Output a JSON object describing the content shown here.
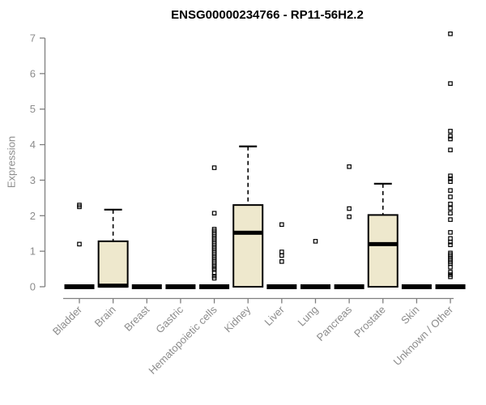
{
  "header": {
    "title": "ENSG00000234766 - RP11-56H2.2"
  },
  "chart_data": {
    "type": "boxplot",
    "title": "ENSG00000234766 - RP11-56H2.2",
    "xlabel": "",
    "ylabel": "Expression",
    "ylim": [
      0,
      7
    ],
    "yticks": [
      0,
      1,
      2,
      3,
      4,
      5,
      6,
      7
    ],
    "grid": false,
    "legend": null,
    "colors": {
      "box_fill": "#EEE8CD",
      "box_stroke": "#000000",
      "axis": "#7f7f7f",
      "label": "#8c8c8c",
      "title": "#000000"
    },
    "categories": [
      "Bladder",
      "Brain",
      "Breast",
      "Gastric",
      "Hematopoietic cells",
      "Kidney",
      "Liver",
      "Lung",
      "Pancreas",
      "Prostate",
      "Skin",
      "Unknown / Other"
    ],
    "boxes": [
      {
        "category": "Bladder",
        "q1": 0,
        "median": 0,
        "q3": 0,
        "whisker_low": 0,
        "whisker_high": 0,
        "outliers": [
          2.3,
          2.25,
          1.2
        ]
      },
      {
        "category": "Brain",
        "q1": 0,
        "median": 0.03,
        "q3": 1.28,
        "whisker_low": 0,
        "whisker_high": 2.17,
        "outliers": []
      },
      {
        "category": "Breast",
        "q1": 0,
        "median": 0,
        "q3": 0,
        "whisker_low": 0,
        "whisker_high": 0,
        "outliers": []
      },
      {
        "category": "Gastric",
        "q1": 0,
        "median": 0,
        "q3": 0,
        "whisker_low": 0,
        "whisker_high": 0,
        "outliers": []
      },
      {
        "category": "Hematopoietic cells",
        "q1": 0,
        "median": 0,
        "q3": 0,
        "whisker_low": 0,
        "whisker_high": 0,
        "outliers": [
          3.35,
          2.07,
          1.62,
          1.57,
          1.52,
          1.47,
          1.42,
          1.37,
          1.32,
          1.27,
          1.22,
          1.17,
          1.12,
          1.07,
          1.02,
          0.97,
          0.92,
          0.87,
          0.82,
          0.77,
          0.72,
          0.67,
          0.62,
          0.57,
          0.52,
          0.48,
          0.38,
          0.3,
          0.24
        ]
      },
      {
        "category": "Kidney",
        "q1": 0,
        "median": 1.52,
        "q3": 2.3,
        "whisker_low": 0,
        "whisker_high": 3.95,
        "outliers": []
      },
      {
        "category": "Liver",
        "q1": 0,
        "median": 0,
        "q3": 0,
        "whisker_low": 0,
        "whisker_high": 0,
        "outliers": [
          1.75,
          0.98,
          0.88,
          0.71
        ]
      },
      {
        "category": "Lung",
        "q1": 0,
        "median": 0,
        "q3": 0,
        "whisker_low": 0,
        "whisker_high": 0,
        "outliers": [
          1.28
        ]
      },
      {
        "category": "Pancreas",
        "q1": 0,
        "median": 0,
        "q3": 0,
        "whisker_low": 0,
        "whisker_high": 0,
        "outliers": [
          3.38,
          2.2,
          1.97
        ]
      },
      {
        "category": "Prostate",
        "q1": 0,
        "median": 1.2,
        "q3": 2.02,
        "whisker_low": 0,
        "whisker_high": 2.9,
        "outliers": []
      },
      {
        "category": "Skin",
        "q1": 0,
        "median": 0,
        "q3": 0,
        "whisker_low": 0,
        "whisker_high": 0,
        "outliers": []
      },
      {
        "category": "Unknown / Other",
        "q1": 0,
        "median": 0,
        "q3": 0,
        "whisker_low": 0,
        "whisker_high": 0,
        "outliers": [
          7.12,
          5.72,
          4.38,
          4.24,
          4.16,
          3.85,
          3.12,
          3.04,
          2.96,
          2.71,
          2.53,
          2.33,
          2.21,
          2.07,
          1.89,
          1.53,
          1.36,
          1.26,
          1.18,
          0.95,
          0.9,
          0.85,
          0.8,
          0.75,
          0.7,
          0.65,
          0.55,
          0.41,
          0.34,
          0.28
        ]
      }
    ]
  }
}
